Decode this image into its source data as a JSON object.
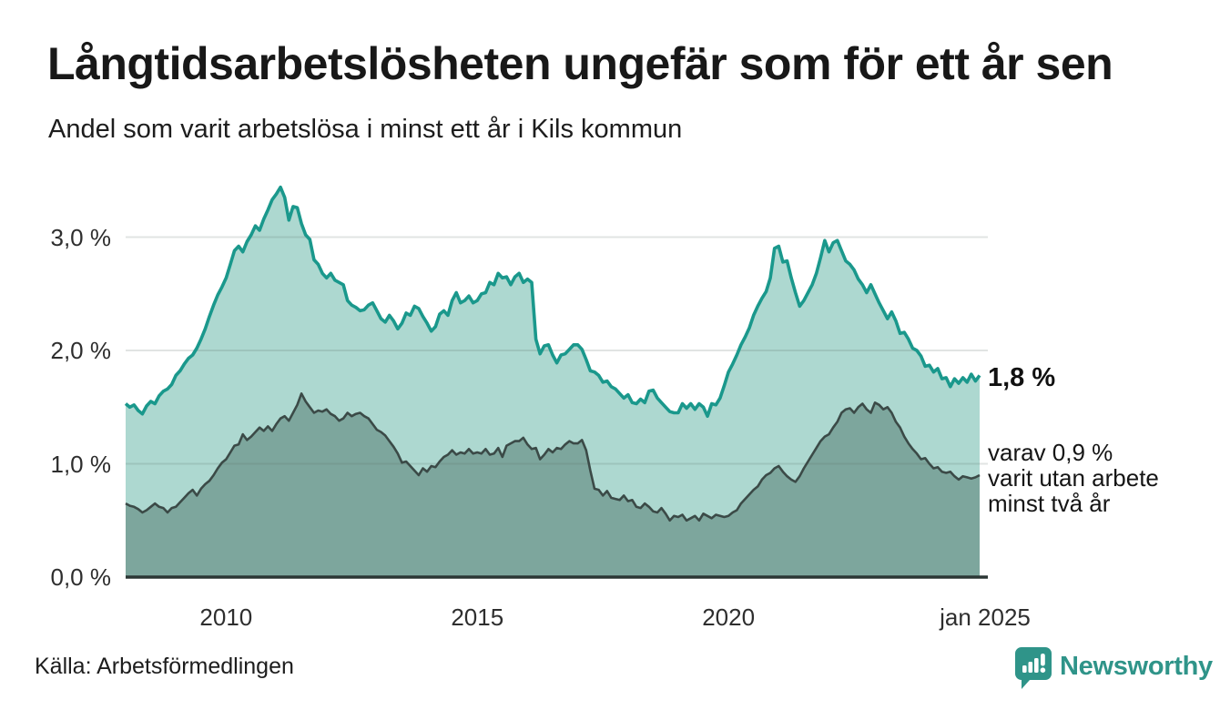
{
  "header": {
    "title": "Långtidsarbetslösheten ungefär som för ett år sen",
    "subtitle": "Andel som varit arbetslösa i minst ett år i Kils kommun"
  },
  "annotations": {
    "latest_total": "1,8 %",
    "sub_line1": "varav 0,9 %",
    "sub_line2": "varit utan arbete",
    "sub_line3": "minst två år"
  },
  "footer": {
    "source": "Källa: Arbetsförmedlingen",
    "brand": "Newsworthy"
  },
  "colors": {
    "line_total": "#1a988c",
    "fill_total": "#add8d0",
    "line_two_years": "#3b4a47",
    "fill_two_years": "#7da69d",
    "gridline": "#e3e3e3",
    "baseline": "#2b3634",
    "brand_teal": "#2f9489",
    "text": "#181818"
  },
  "chart_data": {
    "type": "area",
    "title": "Långtidsarbetslösheten ungefär som för ett år sen",
    "subtitle": "Andel som varit arbetslösa i minst ett år i Kils kommun",
    "unit": "%",
    "x_start": "2008-01",
    "x_end": "2025-01",
    "interval": "monthly",
    "ylim": [
      0,
      3.6
    ],
    "grid": "horizontal",
    "legend_position": "end-of-line-labels",
    "yticks": [
      {
        "label": "0,0 %",
        "value": 0
      },
      {
        "label": "1,0 %",
        "value": 1
      },
      {
        "label": "2,0 %",
        "value": 2
      },
      {
        "label": "3,0 %",
        "value": 3
      }
    ],
    "xticks": [
      {
        "label": "2010",
        "year": 2010
      },
      {
        "label": "2015",
        "year": 2015
      },
      {
        "label": "2020",
        "year": 2020
      },
      {
        "label": "jan 2025",
        "year": 2025
      }
    ],
    "series": [
      {
        "name": "Andel arbetslösa minst ett år",
        "end_label": "1,8 %",
        "color": "#1a988c",
        "fill": "#add8d0",
        "values": [
          1.53,
          1.5,
          1.52,
          1.47,
          1.44,
          1.51,
          1.55,
          1.53,
          1.6,
          1.64,
          1.66,
          1.7,
          1.78,
          1.82,
          1.88,
          1.93,
          1.96,
          2.02,
          2.1,
          2.19,
          2.3,
          2.4,
          2.49,
          2.56,
          2.64,
          2.76,
          2.88,
          2.92,
          2.87,
          2.96,
          3.02,
          3.1,
          3.06,
          3.16,
          3.24,
          3.33,
          3.38,
          3.44,
          3.35,
          3.15,
          3.27,
          3.26,
          3.12,
          3.02,
          2.98,
          2.8,
          2.76,
          2.68,
          2.64,
          2.68,
          2.62,
          2.6,
          2.58,
          2.44,
          2.4,
          2.38,
          2.35,
          2.36,
          2.4,
          2.42,
          2.35,
          2.28,
          2.25,
          2.31,
          2.26,
          2.19,
          2.24,
          2.33,
          2.31,
          2.39,
          2.37,
          2.3,
          2.24,
          2.17,
          2.21,
          2.32,
          2.35,
          2.31,
          2.44,
          2.51,
          2.42,
          2.44,
          2.48,
          2.42,
          2.44,
          2.5,
          2.51,
          2.6,
          2.58,
          2.68,
          2.64,
          2.65,
          2.58,
          2.65,
          2.68,
          2.6,
          2.63,
          2.6,
          2.1,
          1.97,
          2.04,
          2.05,
          1.96,
          1.89,
          1.96,
          1.97,
          2.01,
          2.05,
          2.05,
          2.01,
          1.92,
          1.82,
          1.81,
          1.78,
          1.72,
          1.73,
          1.68,
          1.66,
          1.62,
          1.58,
          1.61,
          1.54,
          1.53,
          1.57,
          1.54,
          1.64,
          1.65,
          1.58,
          1.54,
          1.5,
          1.46,
          1.45,
          1.45,
          1.53,
          1.49,
          1.53,
          1.48,
          1.53,
          1.5,
          1.42,
          1.53,
          1.52,
          1.58,
          1.69,
          1.81,
          1.88,
          1.96,
          2.05,
          2.12,
          2.2,
          2.31,
          2.39,
          2.46,
          2.52,
          2.64,
          2.9,
          2.92,
          2.78,
          2.79,
          2.64,
          2.51,
          2.39,
          2.44,
          2.51,
          2.58,
          2.68,
          2.82,
          2.97,
          2.87,
          2.95,
          2.97,
          2.88,
          2.79,
          2.76,
          2.71,
          2.63,
          2.58,
          2.51,
          2.58,
          2.5,
          2.42,
          2.35,
          2.28,
          2.34,
          2.26,
          2.15,
          2.16,
          2.1,
          2.02,
          2.0,
          1.95,
          1.86,
          1.87,
          1.81,
          1.84,
          1.75,
          1.76,
          1.68,
          1.75,
          1.71,
          1.76,
          1.72,
          1.79,
          1.73,
          1.78
        ]
      },
      {
        "name": "Andel utan arbete minst två år",
        "end_label": "varav 0,9 %",
        "color": "#3b4a47",
        "fill": "#7da69d",
        "values": [
          0.65,
          0.63,
          0.62,
          0.6,
          0.57,
          0.59,
          0.62,
          0.65,
          0.62,
          0.61,
          0.57,
          0.61,
          0.62,
          0.66,
          0.7,
          0.74,
          0.77,
          0.72,
          0.78,
          0.82,
          0.85,
          0.9,
          0.96,
          1.01,
          1.04,
          1.1,
          1.16,
          1.17,
          1.26,
          1.21,
          1.24,
          1.28,
          1.32,
          1.29,
          1.33,
          1.29,
          1.35,
          1.4,
          1.42,
          1.38,
          1.45,
          1.52,
          1.62,
          1.55,
          1.5,
          1.45,
          1.47,
          1.46,
          1.48,
          1.44,
          1.42,
          1.38,
          1.4,
          1.45,
          1.42,
          1.44,
          1.45,
          1.42,
          1.4,
          1.35,
          1.3,
          1.28,
          1.25,
          1.2,
          1.15,
          1.09,
          1.01,
          1.02,
          0.98,
          0.94,
          0.9,
          0.96,
          0.93,
          0.98,
          0.97,
          1.02,
          1.06,
          1.08,
          1.12,
          1.08,
          1.1,
          1.09,
          1.13,
          1.09,
          1.1,
          1.09,
          1.13,
          1.08,
          1.09,
          1.14,
          1.06,
          1.16,
          1.18,
          1.2,
          1.2,
          1.23,
          1.17,
          1.13,
          1.14,
          1.04,
          1.08,
          1.13,
          1.1,
          1.14,
          1.13,
          1.17,
          1.2,
          1.18,
          1.18,
          1.21,
          1.12,
          0.94,
          0.78,
          0.77,
          0.72,
          0.76,
          0.7,
          0.69,
          0.68,
          0.72,
          0.67,
          0.68,
          0.62,
          0.61,
          0.65,
          0.62,
          0.58,
          0.57,
          0.61,
          0.56,
          0.5,
          0.54,
          0.53,
          0.55,
          0.5,
          0.52,
          0.54,
          0.5,
          0.56,
          0.54,
          0.52,
          0.55,
          0.54,
          0.53,
          0.54,
          0.57,
          0.59,
          0.65,
          0.69,
          0.73,
          0.77,
          0.8,
          0.86,
          0.9,
          0.92,
          0.96,
          0.98,
          0.93,
          0.89,
          0.86,
          0.84,
          0.89,
          0.96,
          1.02,
          1.08,
          1.14,
          1.2,
          1.24,
          1.26,
          1.32,
          1.37,
          1.45,
          1.48,
          1.49,
          1.45,
          1.5,
          1.53,
          1.48,
          1.45,
          1.54,
          1.52,
          1.48,
          1.5,
          1.45,
          1.37,
          1.32,
          1.24,
          1.18,
          1.13,
          1.09,
          1.04,
          1.05,
          1.0,
          0.96,
          0.97,
          0.93,
          0.92,
          0.93,
          0.89,
          0.86,
          0.89,
          0.88,
          0.87,
          0.88,
          0.9
        ]
      }
    ]
  }
}
